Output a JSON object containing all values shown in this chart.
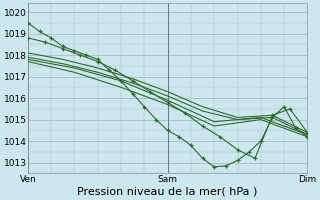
{
  "bg_color": "#cce8ee",
  "grid_color": "#aabbcc",
  "line_color": "#2d6a2d",
  "marker_color": "#2d6a2d",
  "title": "Pression niveau de la mer( hPa )",
  "title_fontsize": 8,
  "tick_fontsize": 6.5,
  "ylabel_ticks": [
    1013,
    1014,
    1015,
    1016,
    1017,
    1018,
    1019,
    1020
  ],
  "ylim": [
    1012.5,
    1020.4
  ],
  "xlim": [
    0,
    48
  ],
  "xtick_positions": [
    0,
    24,
    48
  ],
  "xtick_labels": [
    "Ven",
    "Sam",
    "Dim"
  ],
  "series": [
    {
      "x": [
        0,
        2,
        4,
        6,
        8,
        10,
        12,
        14,
        16,
        18,
        20,
        22,
        24,
        26,
        28,
        30,
        32,
        34,
        36,
        38,
        40,
        42,
        44,
        46,
        48
      ],
      "y": [
        1019.5,
        1019.1,
        1018.8,
        1018.4,
        1018.2,
        1018.0,
        1017.8,
        1017.3,
        1016.8,
        1016.2,
        1015.6,
        1015.0,
        1014.5,
        1014.2,
        1013.8,
        1013.2,
        1012.8,
        1012.85,
        1013.1,
        1013.5,
        1014.0,
        1015.1,
        1015.6,
        1014.6,
        1014.2
      ],
      "marker": true
    },
    {
      "x": [
        0,
        3,
        6,
        9,
        12,
        15,
        18,
        21,
        24,
        27,
        30,
        33,
        36,
        39,
        42,
        45,
        48
      ],
      "y": [
        1018.8,
        1018.6,
        1018.3,
        1018.0,
        1017.7,
        1017.3,
        1016.8,
        1016.3,
        1015.8,
        1015.3,
        1014.7,
        1014.2,
        1013.6,
        1013.2,
        1015.2,
        1015.5,
        1014.4
      ],
      "marker": true
    },
    {
      "x": [
        0,
        6,
        12,
        18,
        24,
        30,
        36,
        42,
        48
      ],
      "y": [
        1018.1,
        1017.8,
        1017.4,
        1016.9,
        1016.3,
        1015.6,
        1015.1,
        1015.2,
        1014.4
      ],
      "marker": false
    },
    {
      "x": [
        0,
        6,
        12,
        18,
        24,
        30,
        36,
        42,
        48
      ],
      "y": [
        1017.9,
        1017.6,
        1017.2,
        1016.7,
        1016.1,
        1015.4,
        1015.0,
        1015.1,
        1014.3
      ],
      "marker": false
    },
    {
      "x": [
        0,
        8,
        16,
        24,
        32,
        40,
        48
      ],
      "y": [
        1017.8,
        1017.4,
        1016.8,
        1015.9,
        1014.9,
        1015.1,
        1014.3
      ],
      "marker": false
    },
    {
      "x": [
        0,
        8,
        16,
        24,
        32,
        40,
        48
      ],
      "y": [
        1017.7,
        1017.2,
        1016.5,
        1015.7,
        1014.7,
        1015.0,
        1014.2
      ],
      "marker": false
    }
  ]
}
